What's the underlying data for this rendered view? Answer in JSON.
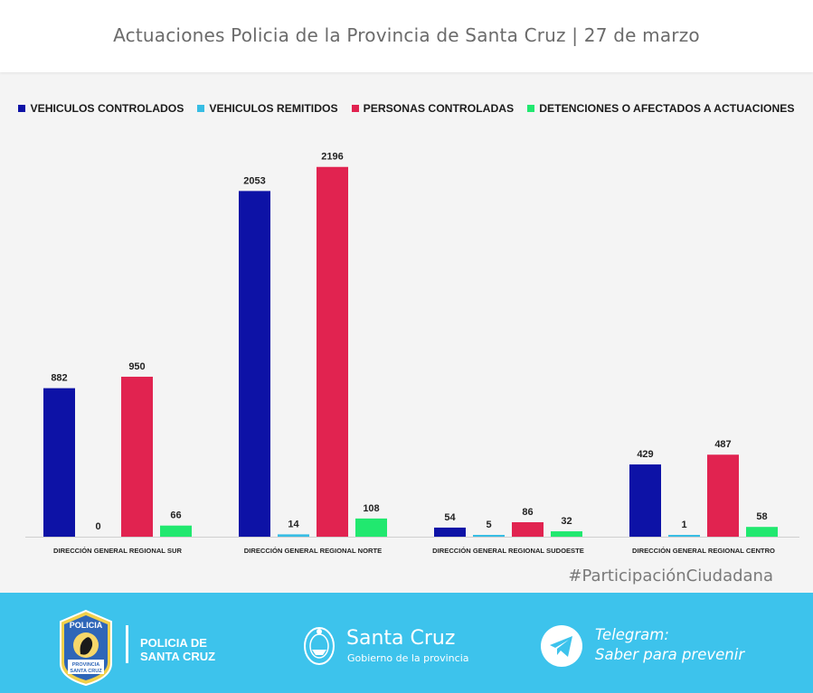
{
  "header": {
    "title": "Actuaciones Policia de la Provincia de Santa Cruz | 27 de marzo"
  },
  "chart_data": {
    "type": "bar",
    "title": "Actuaciones Policia de la Provincia de Santa Cruz | 27 de marzo",
    "xlabel": "",
    "ylabel": "",
    "ylim": [
      0,
      2200
    ],
    "grid": false,
    "legend_position": "top",
    "categories": [
      "DIRECCIÓN GENERAL REGIONAL SUR",
      "DIRECCIÓN GENERAL REGIONAL NORTE",
      "DIRECCIÓN GENERAL REGIONAL SUDOESTE",
      "DIRECCIÓN GENERAL REGIONAL CENTRO"
    ],
    "series": [
      {
        "name": "VEHICULOS CONTROLADOS",
        "color": "#0d12a6",
        "values": [
          882,
          2053,
          54,
          429
        ]
      },
      {
        "name": "VEHICULOS REMITIDOS",
        "color": "#37bde4",
        "values": [
          0,
          14,
          5,
          1
        ]
      },
      {
        "name": "PERSONAS CONTROLADAS",
        "color": "#e12350",
        "values": [
          950,
          2196,
          86,
          487
        ]
      },
      {
        "name": "DETENCIONES O AFECTADOS A ACTUACIONES",
        "color": "#21e86f",
        "values": [
          66,
          108,
          32,
          58
        ]
      }
    ]
  },
  "hashtag": "#ParticipaciónCiudadana",
  "footer": {
    "background": "#3dc3ec",
    "badge_icon": "police-badge-icon",
    "badge_text_top": "POLICIA",
    "badge_text_bottom_1": "PROVINCIA",
    "badge_text_bottom_2": "SANTA CRUZ",
    "police_line1": "POLICIA DE",
    "police_line2": "SANTA CRUZ",
    "gov_icon": "provincial-emblem-icon",
    "gov_name": "Santa Cruz",
    "gov_sub": "Gobierno de la provincia",
    "telegram_icon": "telegram-icon",
    "telegram_line1": "Telegram:",
    "telegram_line2": "Saber para prevenir"
  }
}
